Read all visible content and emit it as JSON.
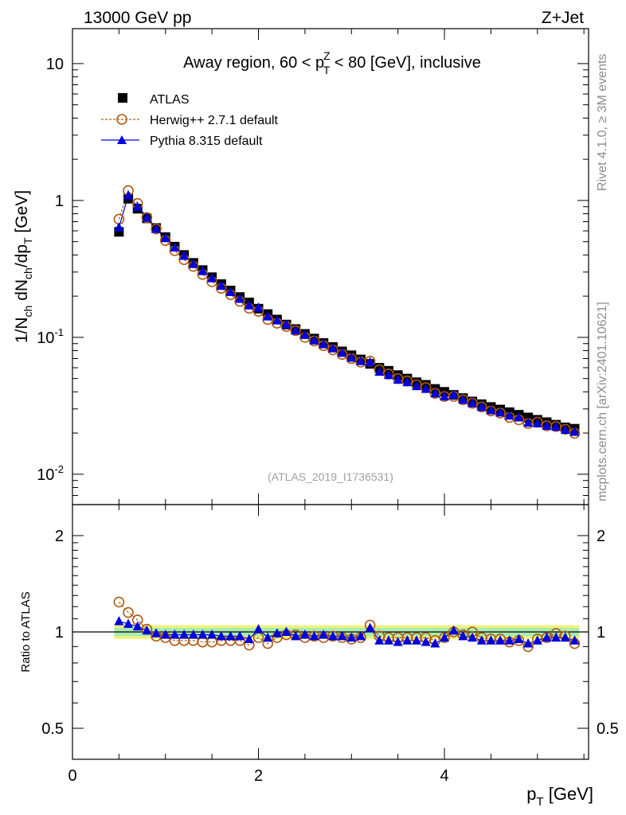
{
  "header": {
    "beam": "13000 GeV pp",
    "process": "Z+Jet",
    "rivet_info": "Rivet 4.1.0, ≥ 3M events",
    "site_info": "mcplots.cern.ch [arXiv:2401.10621]",
    "analysis_id": "(ATLAS_2019_I1736531)"
  },
  "colors": {
    "data": "#000000",
    "herwig": "#b05a10",
    "pythia": "#0000dd",
    "band_outer": "#f2f27a",
    "band_inner": "#a8ecb0"
  },
  "chart_data": [
    {
      "type": "scatter",
      "panel": "main",
      "title": "Away region, 60 < p_T^Z < 80 [GeV], inclusive",
      "ylabel": "1/N_ch dN_ch/dp_T [GeV]",
      "yscale": "log",
      "ylim": [
        0.006,
        18
      ],
      "xlim": [
        0,
        5.55
      ],
      "y_tick_labels": [
        "10^-2",
        "10^-1",
        "1",
        "10"
      ],
      "x": [
        0.5,
        0.6,
        0.7,
        0.8,
        0.9,
        1.0,
        1.1,
        1.2,
        1.3,
        1.4,
        1.5,
        1.6,
        1.7,
        1.8,
        1.9,
        2.0,
        2.1,
        2.2,
        2.3,
        2.4,
        2.5,
        2.6,
        2.7,
        2.8,
        2.9,
        3.0,
        3.1,
        3.2,
        3.3,
        3.4,
        3.5,
        3.6,
        3.7,
        3.8,
        3.9,
        4.0,
        4.1,
        4.2,
        4.3,
        4.4,
        4.5,
        4.6,
        4.7,
        4.8,
        4.9,
        5.0,
        5.1,
        5.2,
        5.3,
        5.4
      ],
      "series": [
        {
          "name": "ATLAS",
          "marker": "square",
          "values": [
            0.59,
            1.03,
            0.87,
            0.74,
            0.63,
            0.54,
            0.46,
            0.4,
            0.35,
            0.31,
            0.275,
            0.245,
            0.22,
            0.197,
            0.18,
            0.162,
            0.148,
            0.135,
            0.124,
            0.115,
            0.106,
            0.098,
            0.091,
            0.085,
            0.079,
            0.074,
            0.069,
            0.064,
            0.06,
            0.057,
            0.053,
            0.05,
            0.047,
            0.045,
            0.042,
            0.04,
            0.038,
            0.036,
            0.034,
            0.0325,
            0.031,
            0.0297,
            0.0284,
            0.0272,
            0.026,
            0.025,
            0.024,
            0.023,
            0.022,
            0.0215
          ]
        },
        {
          "name": "Herwig++ 2.7.1 default",
          "marker": "open-circle",
          "values": [
            0.73,
            1.18,
            0.95,
            0.75,
            0.62,
            0.51,
            0.43,
            0.37,
            0.33,
            0.288,
            0.255,
            0.228,
            0.205,
            0.183,
            0.163,
            0.155,
            0.135,
            0.127,
            0.12,
            0.112,
            0.1,
            0.094,
            0.087,
            0.081,
            0.075,
            0.07,
            0.066,
            0.067,
            0.058,
            0.054,
            0.05,
            0.048,
            0.045,
            0.043,
            0.039,
            0.037,
            0.037,
            0.035,
            0.033,
            0.031,
            0.029,
            0.028,
            0.026,
            0.025,
            0.0235,
            0.024,
            0.0226,
            0.0223,
            0.0213,
            0.0199
          ]
        },
        {
          "name": "Pythia 8.315 default",
          "marker": "filled-triangle",
          "values": [
            0.635,
            1.09,
            0.9,
            0.75,
            0.62,
            0.53,
            0.453,
            0.394,
            0.343,
            0.305,
            0.27,
            0.238,
            0.214,
            0.191,
            0.171,
            0.165,
            0.142,
            0.133,
            0.124,
            0.112,
            0.104,
            0.095,
            0.089,
            0.083,
            0.077,
            0.071,
            0.067,
            0.066,
            0.056,
            0.053,
            0.049,
            0.047,
            0.044,
            0.042,
            0.039,
            0.037,
            0.038,
            0.035,
            0.033,
            0.031,
            0.0293,
            0.0282,
            0.0268,
            0.026,
            0.0238,
            0.0235,
            0.0226,
            0.0222,
            0.0211,
            0.0204
          ]
        }
      ]
    },
    {
      "type": "scatter",
      "panel": "ratio",
      "ylabel": "Ratio to ATLAS",
      "xlabel": "p_T [GeV]",
      "yscale": "log",
      "ylim": [
        0.4,
        2.5
      ],
      "xlim": [
        0,
        5.55
      ],
      "y_ticks": [
        0.5,
        1,
        2
      ],
      "y_tick_labels": [
        "0.5",
        "1",
        "2"
      ],
      "x_ticks": [
        0,
        2,
        4
      ],
      "x_tick_labels": [
        "0",
        "2",
        "4"
      ],
      "reference": 1,
      "uncertainty_band_inner": 0.03,
      "uncertainty_band_outer": 0.05,
      "x": [
        0.5,
        0.6,
        0.7,
        0.8,
        0.9,
        1.0,
        1.1,
        1.2,
        1.3,
        1.4,
        1.5,
        1.6,
        1.7,
        1.8,
        1.9,
        2.0,
        2.1,
        2.2,
        2.3,
        2.4,
        2.5,
        2.6,
        2.7,
        2.8,
        2.9,
        3.0,
        3.1,
        3.2,
        3.3,
        3.4,
        3.5,
        3.6,
        3.7,
        3.8,
        3.9,
        4.0,
        4.1,
        4.2,
        4.3,
        4.4,
        4.5,
        4.6,
        4.7,
        4.8,
        4.9,
        5.0,
        5.1,
        5.2,
        5.3,
        5.4
      ],
      "series": [
        {
          "name": "Herwig++ 2.7.1 default",
          "marker": "open-circle",
          "values": [
            1.24,
            1.15,
            1.09,
            1.02,
            0.97,
            0.96,
            0.94,
            0.94,
            0.94,
            0.93,
            0.93,
            0.94,
            0.94,
            0.94,
            0.91,
            0.96,
            0.92,
            0.96,
            0.98,
            0.98,
            0.96,
            0.97,
            0.96,
            0.97,
            0.96,
            0.95,
            0.96,
            1.05,
            0.97,
            0.96,
            0.96,
            0.96,
            0.96,
            0.96,
            0.94,
            0.96,
            1.0,
            0.98,
            1.0,
            0.96,
            0.95,
            0.95,
            0.93,
            0.94,
            0.9,
            0.95,
            0.96,
            0.99,
            0.97,
            0.92
          ]
        },
        {
          "name": "Pythia 8.315 default",
          "marker": "filled-triangle",
          "values": [
            1.08,
            1.06,
            1.04,
            1.01,
            0.99,
            0.98,
            0.98,
            0.98,
            0.98,
            0.98,
            0.98,
            0.97,
            0.97,
            0.97,
            0.95,
            1.02,
            0.96,
            0.99,
            1.0,
            0.97,
            0.98,
            0.97,
            0.98,
            0.97,
            0.97,
            0.96,
            0.97,
            1.03,
            0.94,
            0.94,
            0.93,
            0.94,
            0.94,
            0.93,
            0.92,
            0.96,
            1.01,
            0.97,
            0.96,
            0.94,
            0.94,
            0.94,
            0.94,
            0.95,
            0.92,
            0.94,
            0.96,
            0.96,
            0.96,
            0.94
          ]
        }
      ]
    }
  ]
}
